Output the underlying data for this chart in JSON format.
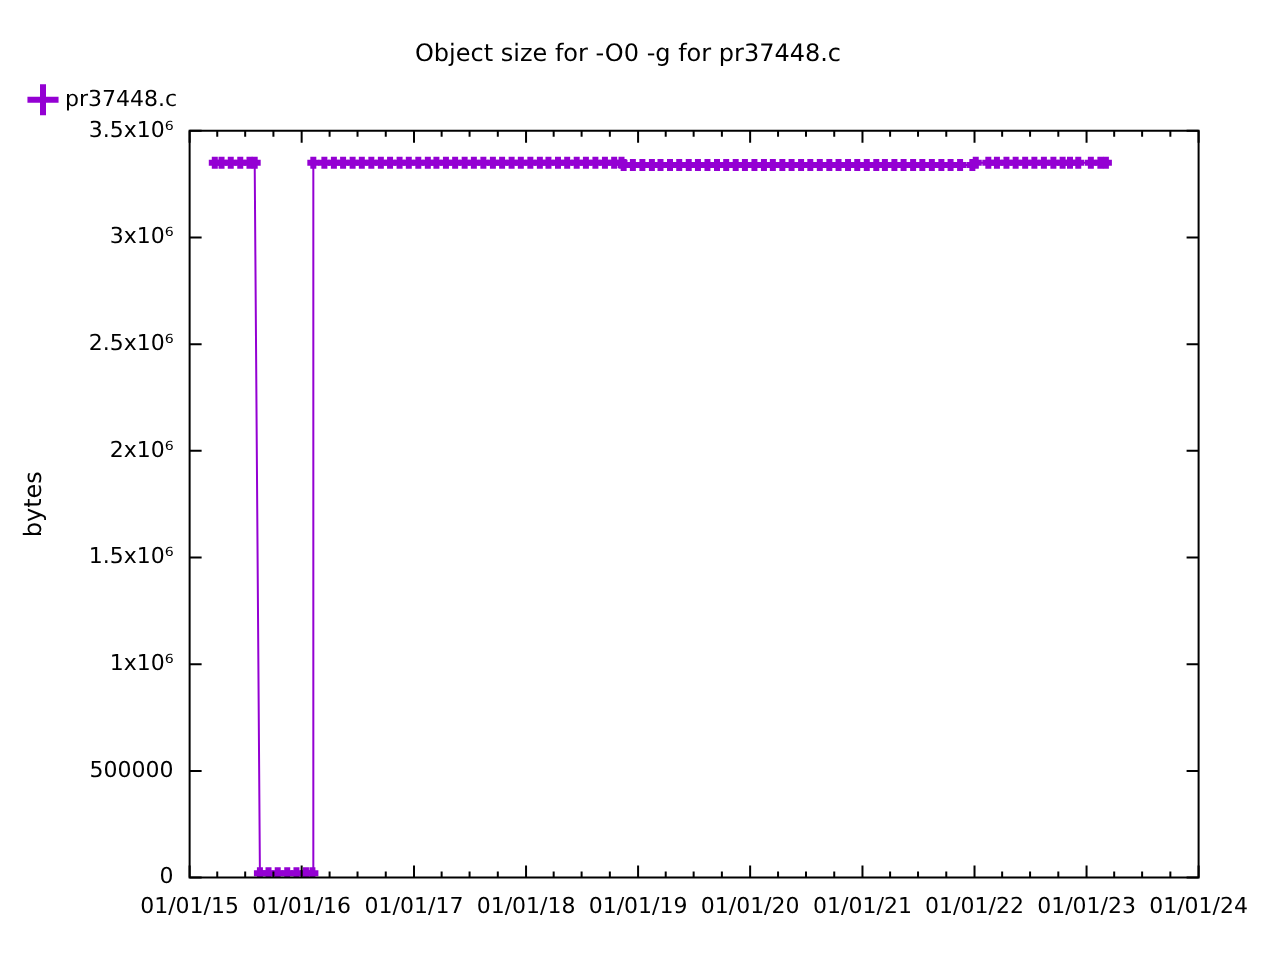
{
  "chart_data": {
    "type": "line",
    "title": "Object size for -O0 -g for pr37448.c",
    "ylabel": "bytes",
    "x": [
      "2015-03-24",
      "2015-04-15",
      "2015-05-15",
      "2015-06-15",
      "2015-07-15",
      "2015-08-01",
      "2015-08-18",
      "2015-09-15",
      "2015-10-15",
      "2015-11-15",
      "2015-12-15",
      "2016-01-15",
      "2016-02-05",
      "2016-02-08",
      "2016-03-15",
      "2016-04-15",
      "2016-05-15",
      "2016-06-15",
      "2016-07-15",
      "2016-08-15",
      "2016-09-15",
      "2016-10-15",
      "2016-11-15",
      "2016-12-15",
      "2017-01-15",
      "2017-02-15",
      "2017-03-15",
      "2017-04-15",
      "2017-05-15",
      "2017-06-15",
      "2017-07-15",
      "2017-08-15",
      "2017-09-15",
      "2017-10-15",
      "2017-11-15",
      "2017-12-15",
      "2018-01-15",
      "2018-02-15",
      "2018-03-15",
      "2018-04-15",
      "2018-05-15",
      "2018-06-15",
      "2018-07-15",
      "2018-08-15",
      "2018-09-15",
      "2018-10-15",
      "2018-11-08",
      "2018-11-15",
      "2018-12-15",
      "2019-01-15",
      "2019-02-15",
      "2019-03-15",
      "2019-04-15",
      "2019-05-15",
      "2019-06-15",
      "2019-07-15",
      "2019-08-15",
      "2019-09-15",
      "2019-10-15",
      "2019-11-15",
      "2019-12-15",
      "2020-01-15",
      "2020-02-15",
      "2020-03-15",
      "2020-04-15",
      "2020-05-15",
      "2020-06-15",
      "2020-07-15",
      "2020-08-15",
      "2020-09-15",
      "2020-10-15",
      "2020-11-15",
      "2020-12-15",
      "2021-01-15",
      "2021-02-15",
      "2021-03-15",
      "2021-04-15",
      "2021-05-15",
      "2021-06-15",
      "2021-07-15",
      "2021-08-15",
      "2021-09-15",
      "2021-10-15",
      "2021-11-15",
      "2021-12-25",
      "2022-01-05",
      "2022-02-15",
      "2022-03-15",
      "2022-04-15",
      "2022-05-15",
      "2022-06-15",
      "2022-07-15",
      "2022-08-15",
      "2022-09-15",
      "2022-10-15",
      "2022-11-08",
      "2022-12-05",
      "2023-01-15",
      "2023-02-15",
      "2023-03-05"
    ],
    "series": [
      {
        "name": "pr37448.c",
        "color": "#9400d3",
        "values": [
          3350000,
          3350000,
          3350000,
          3350000,
          3350000,
          3350000,
          20000,
          20000,
          20000,
          20000,
          20000,
          20000,
          20000,
          3350000,
          3350000,
          3350000,
          3350000,
          3350000,
          3350000,
          3350000,
          3350000,
          3350000,
          3350000,
          3350000,
          3350000,
          3350000,
          3350000,
          3350000,
          3350000,
          3350000,
          3350000,
          3350000,
          3350000,
          3350000,
          3350000,
          3350000,
          3350000,
          3350000,
          3350000,
          3350000,
          3350000,
          3350000,
          3350000,
          3350000,
          3350000,
          3350000,
          3350000,
          3340000,
          3340000,
          3340000,
          3340000,
          3340000,
          3340000,
          3340000,
          3340000,
          3340000,
          3340000,
          3340000,
          3340000,
          3340000,
          3340000,
          3340000,
          3340000,
          3340000,
          3340000,
          3340000,
          3340000,
          3340000,
          3340000,
          3340000,
          3340000,
          3340000,
          3340000,
          3340000,
          3340000,
          3340000,
          3340000,
          3340000,
          3340000,
          3340000,
          3340000,
          3340000,
          3340000,
          3340000,
          3340000,
          3350000,
          3350000,
          3350000,
          3350000,
          3350000,
          3350000,
          3350000,
          3350000,
          3350000,
          3350000,
          3350000,
          3350000,
          3350000,
          3350000,
          3350000
        ]
      }
    ],
    "xlim": [
      "2015-01-01",
      "2024-01-01"
    ],
    "xticks": [
      {
        "value": "2015-01-01",
        "label": "01/01/15"
      },
      {
        "value": "2015-04-01",
        "label": null
      },
      {
        "value": "2015-07-01",
        "label": null
      },
      {
        "value": "2015-10-01",
        "label": null
      },
      {
        "value": "2016-01-01",
        "label": "01/01/16"
      },
      {
        "value": "2016-04-01",
        "label": null
      },
      {
        "value": "2016-07-01",
        "label": null
      },
      {
        "value": "2016-10-01",
        "label": null
      },
      {
        "value": "2017-01-01",
        "label": "01/01/17"
      },
      {
        "value": "2017-04-01",
        "label": null
      },
      {
        "value": "2017-07-01",
        "label": null
      },
      {
        "value": "2017-10-01",
        "label": null
      },
      {
        "value": "2018-01-01",
        "label": "01/01/18"
      },
      {
        "value": "2018-04-01",
        "label": null
      },
      {
        "value": "2018-07-01",
        "label": null
      },
      {
        "value": "2018-10-01",
        "label": null
      },
      {
        "value": "2019-01-01",
        "label": "01/01/19"
      },
      {
        "value": "2019-04-01",
        "label": null
      },
      {
        "value": "2019-07-01",
        "label": null
      },
      {
        "value": "2019-10-01",
        "label": null
      },
      {
        "value": "2020-01-01",
        "label": "01/01/20"
      },
      {
        "value": "2020-04-01",
        "label": null
      },
      {
        "value": "2020-07-01",
        "label": null
      },
      {
        "value": "2020-10-01",
        "label": null
      },
      {
        "value": "2021-01-01",
        "label": "01/01/21"
      },
      {
        "value": "2021-04-01",
        "label": null
      },
      {
        "value": "2021-07-01",
        "label": null
      },
      {
        "value": "2021-10-01",
        "label": null
      },
      {
        "value": "2022-01-01",
        "label": "01/01/22"
      },
      {
        "value": "2022-04-01",
        "label": null
      },
      {
        "value": "2022-07-01",
        "label": null
      },
      {
        "value": "2022-10-01",
        "label": null
      },
      {
        "value": "2023-01-01",
        "label": "01/01/23"
      },
      {
        "value": "2023-04-01",
        "label": null
      },
      {
        "value": "2023-07-01",
        "label": null
      },
      {
        "value": "2023-10-01",
        "label": null
      },
      {
        "value": "2024-01-01",
        "label": "01/01/24"
      }
    ],
    "ylim": [
      0,
      3500000
    ],
    "yticks": [
      0,
      500000,
      {
        "value": 1000000,
        "label": "1x10⁶"
      },
      {
        "value": 1500000,
        "label": "1.5x10⁶"
      },
      {
        "value": 2000000,
        "label": "2x10⁶"
      },
      {
        "value": 2500000,
        "label": "2.5x10⁶"
      },
      {
        "value": 3000000,
        "label": "3x10⁶"
      },
      {
        "value": 3500000,
        "label": "3.5x10⁶"
      }
    ],
    "grid": false,
    "legend": "top left",
    "marker": "cross"
  }
}
